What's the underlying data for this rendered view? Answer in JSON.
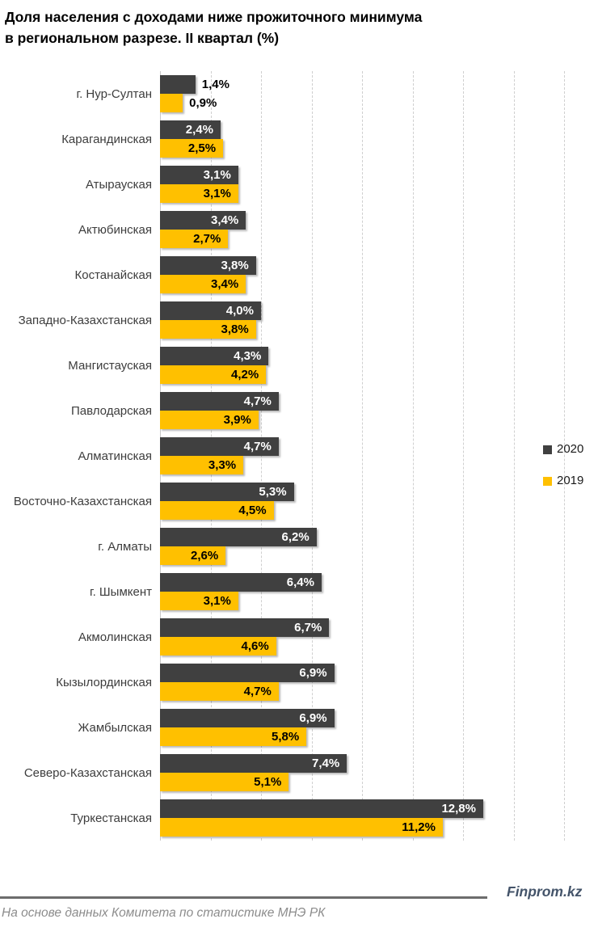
{
  "title": {
    "line1": "Доля населения с доходами ниже прожиточного минимума",
    "line2": "в региональном разрезе. II квартал (%)"
  },
  "legend": {
    "items": [
      {
        "label": "2020",
        "color": "#404040"
      },
      {
        "label": "2019",
        "color": "#FFC000"
      }
    ]
  },
  "footer": {
    "brand": "Finprom.kz",
    "source": "На основе данных Комитета по статистике МНЭ РК"
  },
  "chart_data": {
    "type": "bar",
    "orientation": "horizontal",
    "title": "Доля населения с доходами ниже прожиточного минимума в региональном разрезе. II квартал (%)",
    "unit": "%",
    "decimal_separator": ",",
    "categories": [
      "г. Нур-Султан",
      "Карагандинская",
      "Атырауская",
      "Актюбинская",
      "Костанайская",
      "Западно-Казахстанская",
      "Мангистауская",
      "Павлодарская",
      "Алматинская",
      "Восточно-Казахстанская",
      "г. Алматы",
      "г. Шымкент",
      "Акмолинская",
      "Кызылординская",
      "Жамбылская",
      "Северо-Казахстанская",
      "Туркестанская"
    ],
    "series": [
      {
        "name": "2020",
        "color": "#404040",
        "label_color_inside": "#ffffff",
        "values": [
          1.4,
          2.4,
          3.1,
          3.4,
          3.8,
          4.0,
          4.3,
          4.7,
          4.7,
          5.3,
          6.2,
          6.4,
          6.7,
          6.9,
          6.9,
          7.4,
          12.8
        ],
        "labels": [
          "1,4%",
          "2,4%",
          "3,1%",
          "3,4%",
          "3,8%",
          "4,0%",
          "4,3%",
          "4,7%",
          "4,7%",
          "5,3%",
          "6,2%",
          "6,4%",
          "6,7%",
          "6,9%",
          "6,9%",
          "7,4%",
          "12,8%"
        ]
      },
      {
        "name": "2019",
        "color": "#FFC000",
        "label_color_inside": "#000000",
        "values": [
          0.9,
          2.5,
          3.1,
          2.7,
          3.4,
          3.8,
          4.2,
          3.9,
          3.3,
          4.5,
          2.6,
          3.1,
          4.6,
          4.7,
          5.8,
          5.1,
          11.2
        ],
        "labels": [
          "0,9%",
          "2,5%",
          "3,1%",
          "2,7%",
          "3,4%",
          "3,8%",
          "4,2%",
          "3,9%",
          "3,3%",
          "4,5%",
          "2,6%",
          "3,1%",
          "4,6%",
          "4,7%",
          "5,8%",
          "5,1%",
          "11,2%"
        ]
      }
    ],
    "xlim": [
      0,
      16
    ],
    "gridline_step": 2,
    "grid": true,
    "legend_position": "right",
    "value_labels": "on"
  }
}
